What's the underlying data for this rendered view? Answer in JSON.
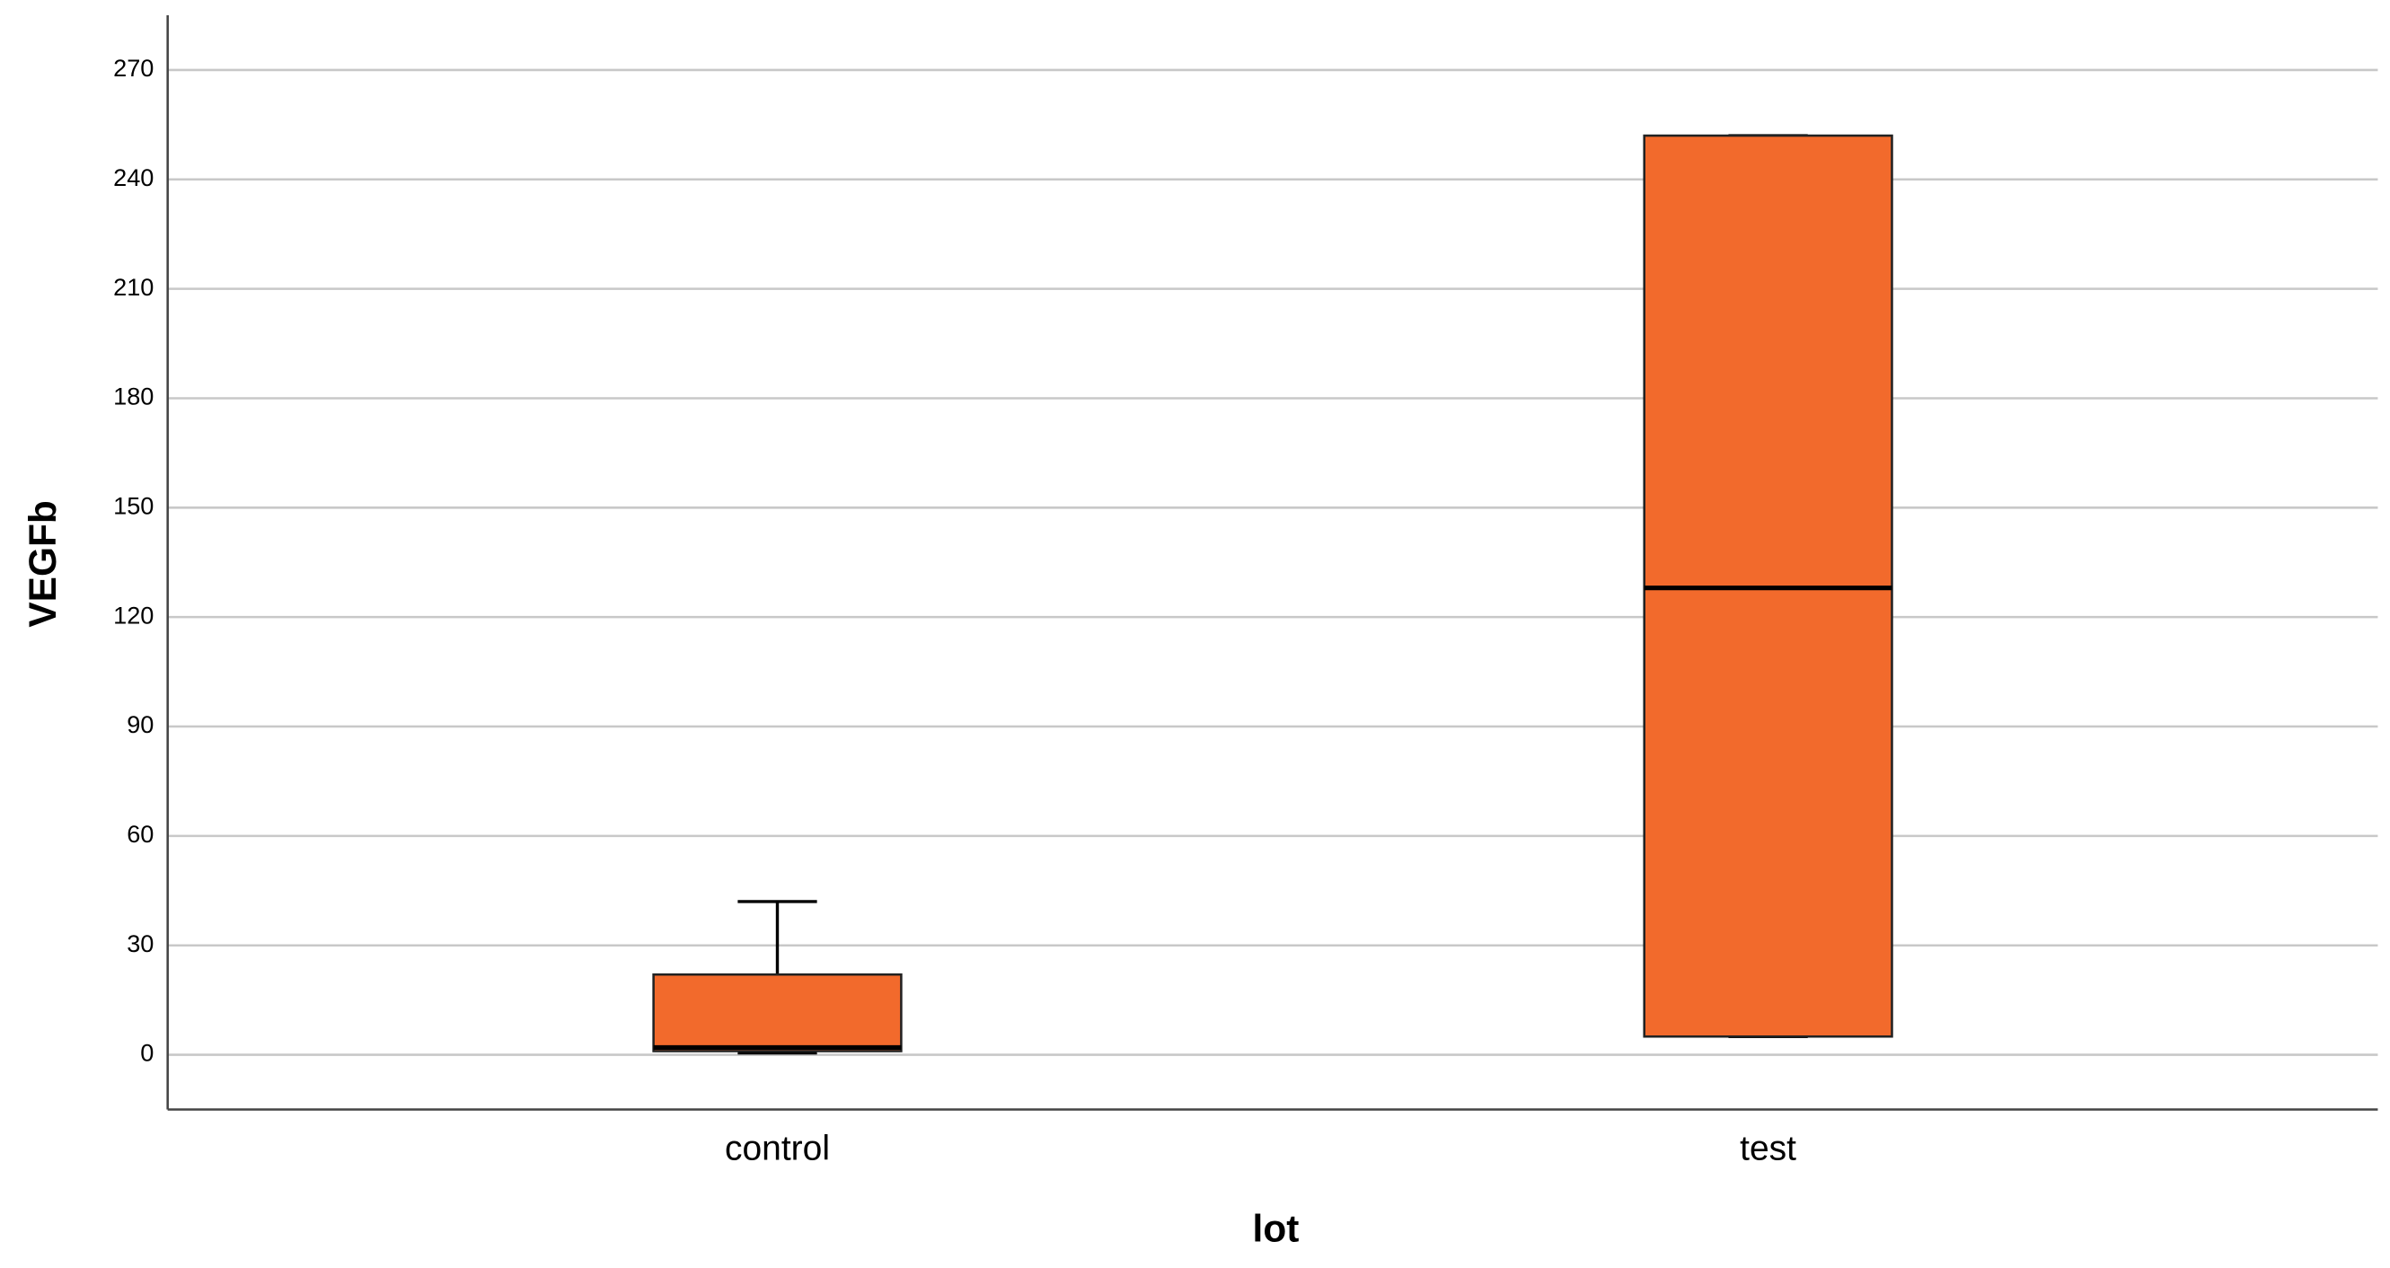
{
  "chart_data": {
    "type": "box",
    "x_label": "lot",
    "y_label": "VEGFb",
    "categories": [
      "control",
      "test"
    ],
    "boxes": [
      {
        "min": 0.5,
        "q1": 1,
        "median": 2,
        "q3": 22,
        "max": 42
      },
      {
        "min": 5,
        "q1": 5,
        "median": 128,
        "q3": 252,
        "max": 252
      }
    ],
    "color": "#f26a2c",
    "ylim": [
      -15,
      285
    ],
    "yticks": [
      0,
      30,
      60,
      90,
      120,
      150,
      180,
      210,
      240,
      270
    ],
    "grid": true
  }
}
